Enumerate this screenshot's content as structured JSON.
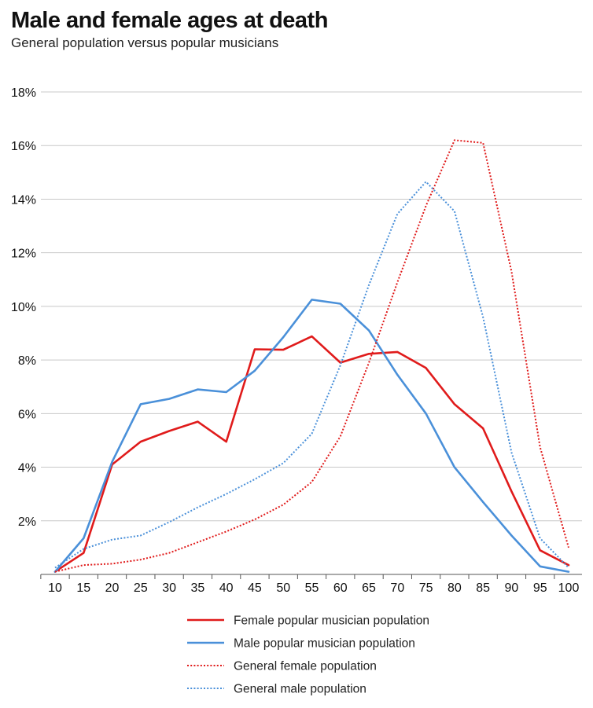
{
  "chart_data": {
    "type": "line",
    "title": "Male and female ages at death",
    "subtitle": "General population versus popular musicians",
    "xlabel": "",
    "ylabel": "",
    "x": [
      10,
      15,
      20,
      25,
      30,
      35,
      40,
      45,
      50,
      55,
      60,
      65,
      70,
      75,
      80,
      85,
      90,
      95,
      100
    ],
    "x_tick_labels": [
      "10",
      "15",
      "20",
      "25",
      "30",
      "35",
      "40",
      "45",
      "50",
      "55",
      "60",
      "65",
      "70",
      "75",
      "80",
      "85",
      "90",
      "95",
      "100"
    ],
    "ylim": [
      0,
      18
    ],
    "y_ticks": [
      2,
      4,
      6,
      8,
      10,
      12,
      14,
      16,
      18
    ],
    "y_tick_labels": [
      "2%",
      "4%",
      "6%",
      "8%",
      "10%",
      "12%",
      "14%",
      "16%",
      "18%"
    ],
    "grid": "horizontal",
    "legend_position": "bottom",
    "series": [
      {
        "name": "Female popular musician population",
        "color": "#e01b1b",
        "style": "solid",
        "values": [
          0.1,
          0.8,
          4.1,
          4.95,
          5.35,
          5.7,
          4.95,
          8.4,
          8.38,
          8.88,
          7.9,
          8.23,
          8.3,
          7.7,
          6.35,
          5.45,
          3.1,
          0.9,
          0.35
        ]
      },
      {
        "name": "Male popular musician population",
        "color": "#4a90d9",
        "style": "solid",
        "values": [
          0.1,
          1.35,
          4.2,
          6.35,
          6.55,
          6.9,
          6.8,
          7.6,
          8.85,
          10.25,
          10.1,
          9.1,
          7.45,
          6.0,
          4.0,
          2.7,
          1.45,
          0.3,
          0.1
        ]
      },
      {
        "name": "General female population",
        "color": "#e01b1b",
        "style": "dotted",
        "values": [
          0.1,
          0.35,
          0.4,
          0.55,
          0.8,
          1.2,
          1.6,
          2.05,
          2.6,
          3.45,
          5.15,
          7.9,
          10.9,
          13.75,
          16.2,
          16.1,
          11.3,
          4.75,
          1.0
        ]
      },
      {
        "name": "General male population",
        "color": "#4a90d9",
        "style": "dotted",
        "values": [
          0.25,
          0.95,
          1.3,
          1.45,
          1.95,
          2.5,
          3.0,
          3.55,
          4.15,
          5.25,
          7.8,
          10.8,
          13.45,
          14.65,
          13.55,
          9.6,
          4.55,
          1.35,
          0.25
        ]
      }
    ]
  }
}
